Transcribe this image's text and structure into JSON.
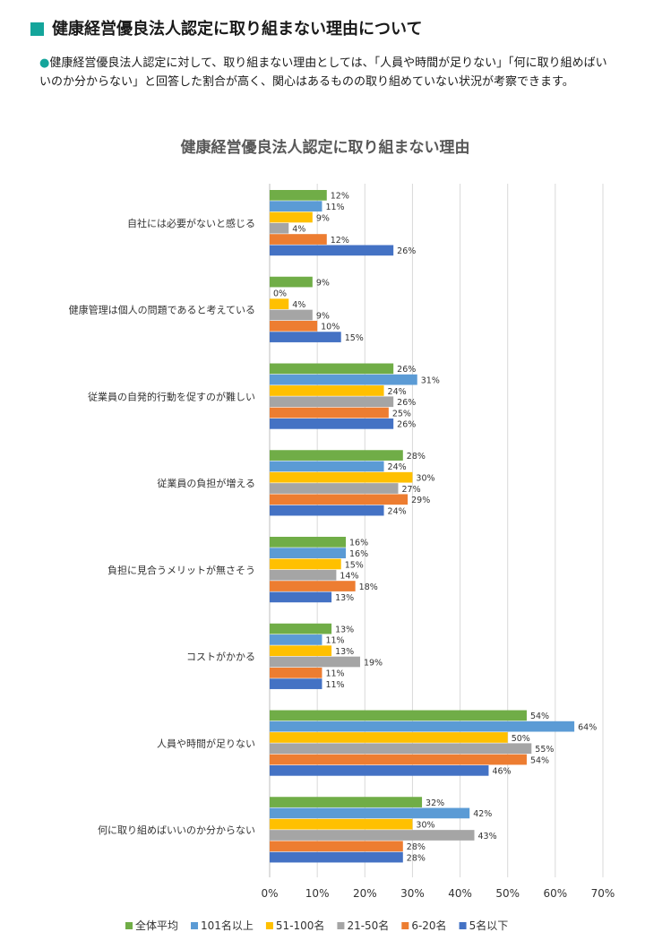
{
  "heading": {
    "title": "健康経営優良法人認定に取り組まない理由について"
  },
  "intro": {
    "bullet": "●",
    "text": "健康経営優良法人認定に対して、取り組まない理由としては、「人員や時間が足りない」「何に取り組めばいいのか分からない」と回答した割合が高く、関心はあるものの取り組めていない状況が考察できます。"
  },
  "colors": {
    "accent": "#14a59b",
    "grid": "#d9d9d9"
  },
  "chart_data": {
    "type": "bar",
    "orientation": "horizontal",
    "title": "健康経営優良法人認定に取り組まない理由",
    "xlabel": "",
    "ylabel": "",
    "xlim": [
      0,
      70
    ],
    "xticks": [
      0,
      10,
      20,
      30,
      40,
      50,
      60,
      70
    ],
    "tick_suffix": "%",
    "grid": true,
    "legend_position": "bottom",
    "categories": [
      "自社には必要がないと感じる",
      "健康管理は個人の問題であると考えている",
      "従業員の自発的行動を促すのが難しい",
      "従業員の負担が増える",
      "負担に見合うメリットが無さそう",
      "コストがかかる",
      "人員や時間が足りない",
      "何に取り組めばいいのか分からない"
    ],
    "series": [
      {
        "name": "全体平均",
        "color": "#70ad47",
        "values": [
          12,
          9,
          26,
          28,
          16,
          13,
          54,
          32
        ]
      },
      {
        "name": "101名以上",
        "color": "#5b9bd5",
        "values": [
          11,
          0,
          31,
          24,
          16,
          11,
          64,
          42
        ]
      },
      {
        "name": "51-100名",
        "color": "#ffc000",
        "values": [
          9,
          4,
          24,
          30,
          15,
          13,
          50,
          30
        ]
      },
      {
        "name": "21-50名",
        "color": "#a5a5a5",
        "values": [
          4,
          9,
          26,
          27,
          14,
          19,
          55,
          43
        ]
      },
      {
        "name": "6-20名",
        "color": "#ed7d31",
        "values": [
          12,
          10,
          25,
          29,
          18,
          11,
          54,
          28
        ]
      },
      {
        "name": "5名以下",
        "color": "#4472c4",
        "values": [
          26,
          15,
          26,
          24,
          13,
          11,
          46,
          28
        ]
      }
    ]
  }
}
